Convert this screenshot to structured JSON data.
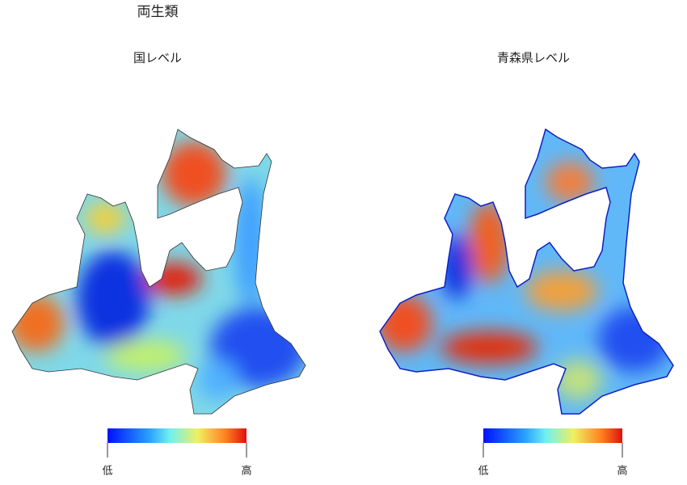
{
  "title": "両生類",
  "maps": [
    {
      "title": "国レベル",
      "legend": {
        "low": "低",
        "high": "高"
      }
    },
    {
      "title": "青森県レベル",
      "legend": {
        "low": "低",
        "high": "高"
      }
    }
  ]
}
